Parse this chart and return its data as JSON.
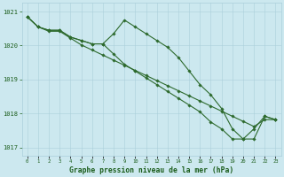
{
  "title": "Graphe pression niveau de la mer (hPa)",
  "hours": [
    0,
    1,
    2,
    3,
    4,
    5,
    6,
    7,
    8,
    9,
    10,
    11,
    12,
    13,
    14,
    15,
    16,
    17,
    18,
    19,
    20,
    21,
    22,
    23
  ],
  "line1": [
    1020.85,
    1020.55,
    1020.45,
    1020.45,
    1020.25,
    1020.15,
    1020.05,
    1020.05,
    1020.35,
    1020.75,
    1020.55,
    1020.35,
    1020.15,
    1019.95,
    1019.65,
    1019.25,
    1018.85,
    1018.55,
    1018.15,
    1017.55,
    1017.25,
    1017.25,
    1017.92,
    1017.82
  ],
  "line2": [
    1020.85,
    1020.55,
    1020.45,
    1020.45,
    1020.25,
    1020.15,
    1020.05,
    1020.05,
    1019.75,
    1019.45,
    1019.25,
    1019.05,
    1018.85,
    1018.65,
    1018.45,
    1018.25,
    1018.05,
    1017.75,
    1017.55,
    1017.25,
    1017.25,
    1017.55,
    1017.92,
    1017.82
  ],
  "line3": [
    1020.85,
    1020.55,
    1020.42,
    1020.42,
    1020.22,
    1020.02,
    1019.87,
    1019.72,
    1019.57,
    1019.42,
    1019.27,
    1019.12,
    1018.97,
    1018.82,
    1018.67,
    1018.52,
    1018.37,
    1018.22,
    1018.07,
    1017.92,
    1017.77,
    1017.62,
    1017.82,
    1017.82
  ],
  "line_color": "#2d6a2d",
  "bg_color": "#cce8ef",
  "grid_color": "#aacfdb",
  "text_color": "#1a5c1a",
  "ylim": [
    1016.75,
    1021.25
  ],
  "yticks": [
    1017,
    1018,
    1019,
    1020,
    1021
  ],
  "xlim": [
    -0.5,
    23.5
  ]
}
